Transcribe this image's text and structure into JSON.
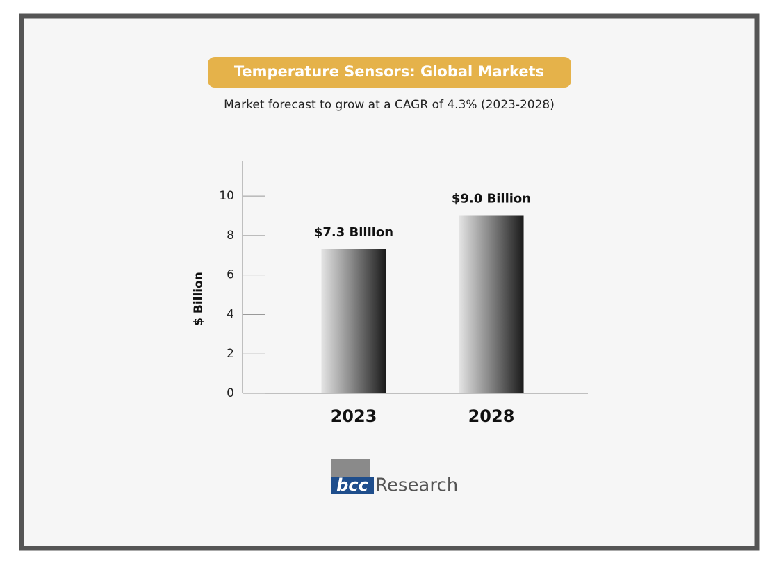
{
  "chart_data": {
    "type": "bar",
    "title": "Temperature Sensors: Global Markets",
    "subtitle": "Market forecast to grow at a CAGR of 4.3% (2023-2028)",
    "y_label": "$ Billion",
    "categories": [
      "2023",
      "2028"
    ],
    "values": [
      7.3,
      9.0
    ],
    "value_labels": [
      "$7.3 Billion",
      "$9.0 Billion"
    ],
    "ylim": [
      0,
      11.8
    ],
    "yticks": [
      0,
      2,
      4,
      6,
      8,
      10
    ]
  },
  "logo": {
    "mark": "bcc",
    "name": "Research"
  }
}
